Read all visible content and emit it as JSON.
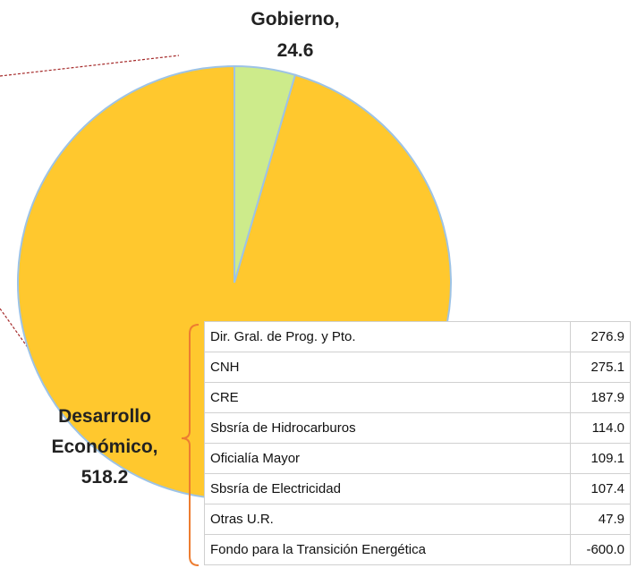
{
  "chart_data": {
    "type": "pie",
    "categories": [
      "Gobierno,",
      "Desarrollo Económico,"
    ],
    "values": [
      24.6,
      518.2
    ],
    "colors": [
      "#cdeb8b",
      "#ffc82e"
    ]
  },
  "table": {
    "rows": [
      [
        "Dir. Gral. de Prog. y Pto.",
        "276.9"
      ],
      [
        "CNH",
        "275.1"
      ],
      [
        "CRE",
        "187.9"
      ],
      [
        "Sbsría de Hidrocarburos",
        "114.0"
      ],
      [
        "Oficialía Mayor",
        "109.1"
      ],
      [
        "Sbsría de Electricidad",
        "107.4"
      ],
      [
        "Otras U.R.",
        "47.9"
      ],
      [
        "Fondo para la Transición Energética",
        "-600.0"
      ]
    ]
  }
}
